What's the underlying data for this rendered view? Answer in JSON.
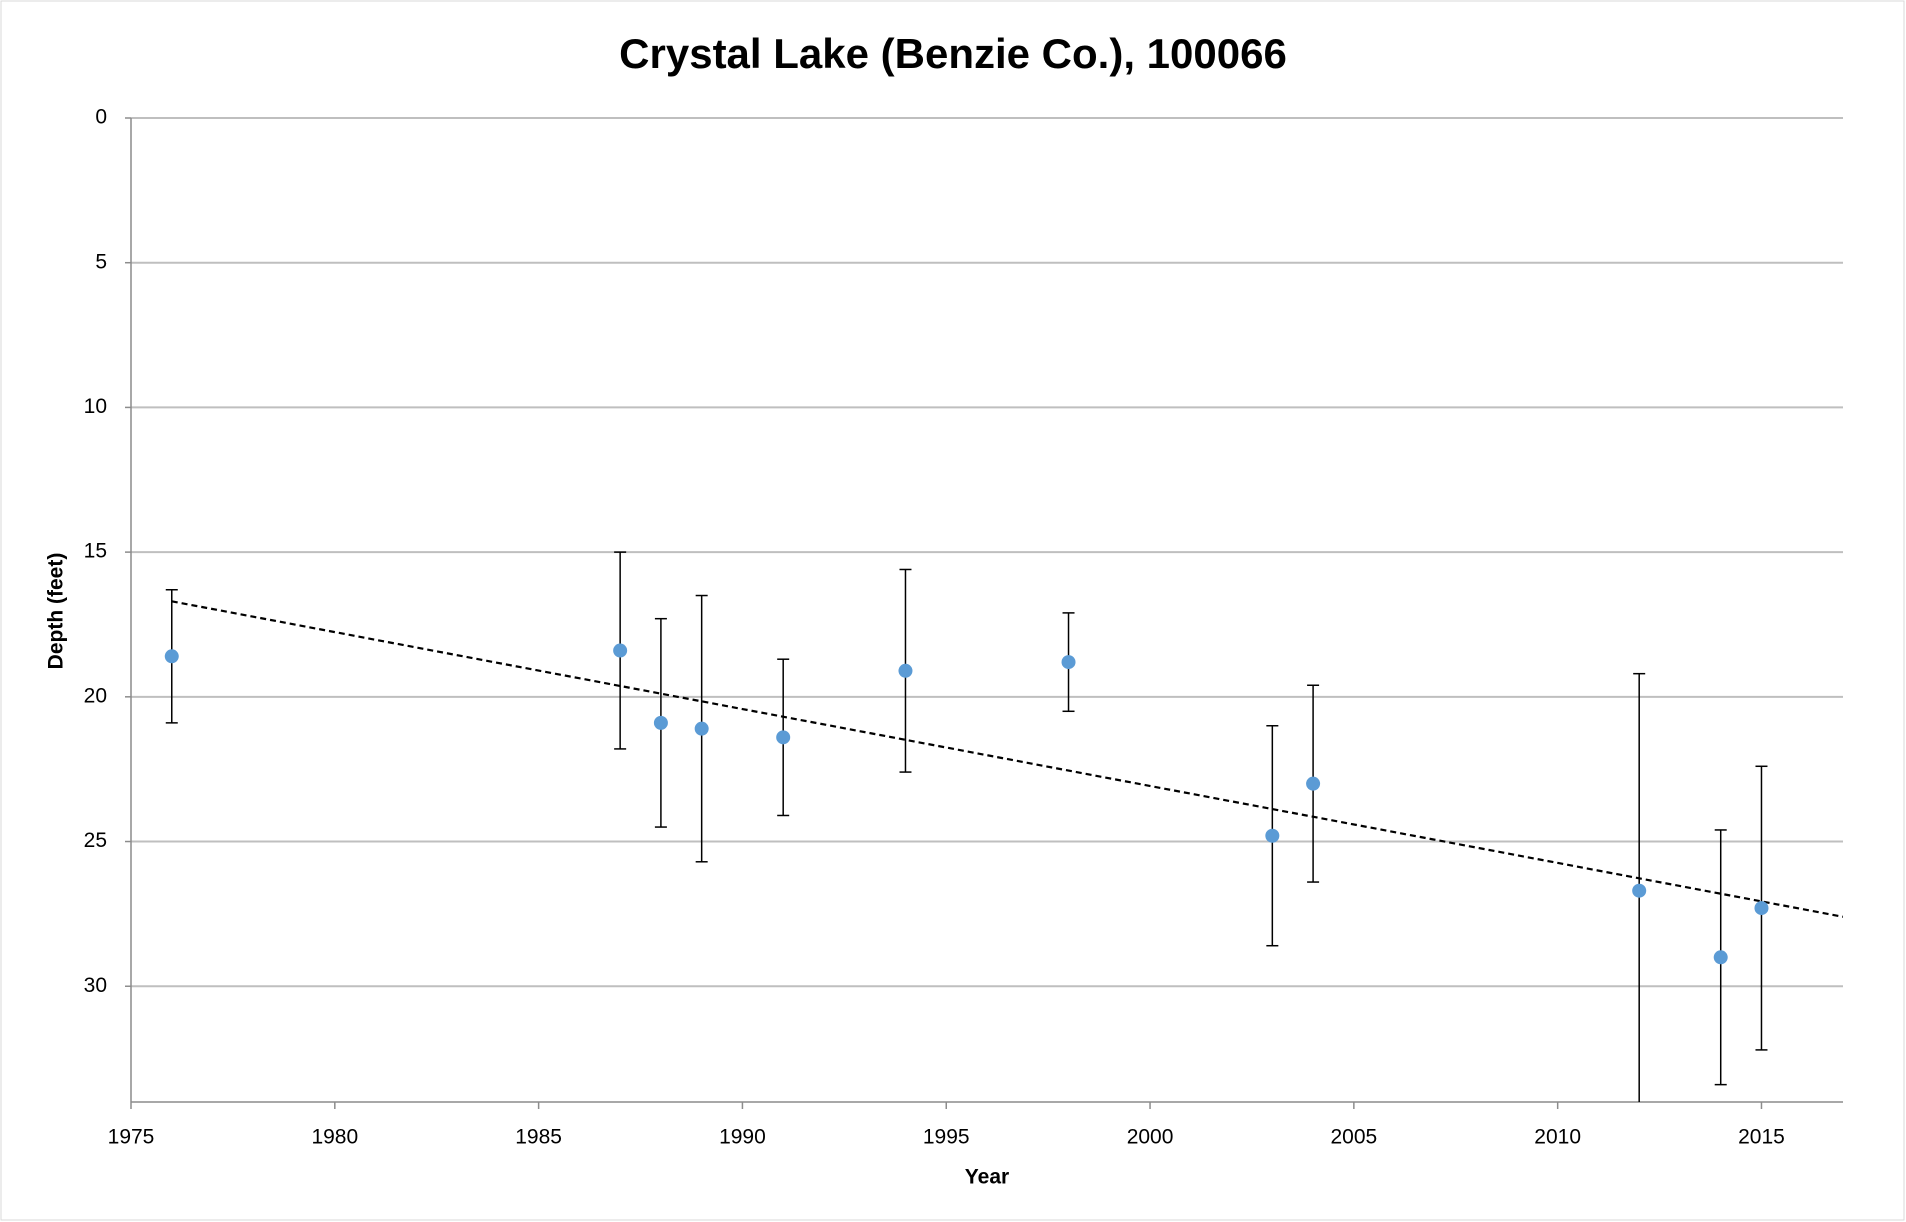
{
  "chart_data": {
    "type": "scatter",
    "title": "Crystal Lake (Benzie Co.), 100066",
    "x_label": "Year",
    "y_label": "Depth (feet)",
    "x": [
      1976,
      1987,
      1988,
      1989,
      1991,
      1994,
      1998,
      2003,
      2004,
      2012,
      2014,
      2015
    ],
    "values": [
      18.6,
      18.4,
      20.9,
      21.1,
      21.4,
      19.1,
      18.8,
      24.8,
      23.0,
      26.7,
      29.0,
      27.3
    ],
    "errors": [
      2.3,
      3.4,
      3.6,
      4.6,
      2.7,
      3.5,
      1.7,
      3.8,
      3.4,
      7.5,
      4.4,
      4.9
    ],
    "color": "#5b9bd5",
    "trendline": {
      "x": [
        1976,
        2017
      ],
      "values": [
        16.7,
        27.6
      ],
      "color": "#000000",
      "dashed": true
    },
    "xlim": [
      1975,
      2017
    ],
    "xticks": [
      1975,
      1980,
      1985,
      1990,
      1995,
      2000,
      2005,
      2010,
      2015
    ],
    "ylim": [
      0,
      34
    ],
    "yticks": [
      0,
      5,
      10,
      15,
      20,
      25,
      30
    ],
    "y_inverted": true,
    "grid": true
  }
}
